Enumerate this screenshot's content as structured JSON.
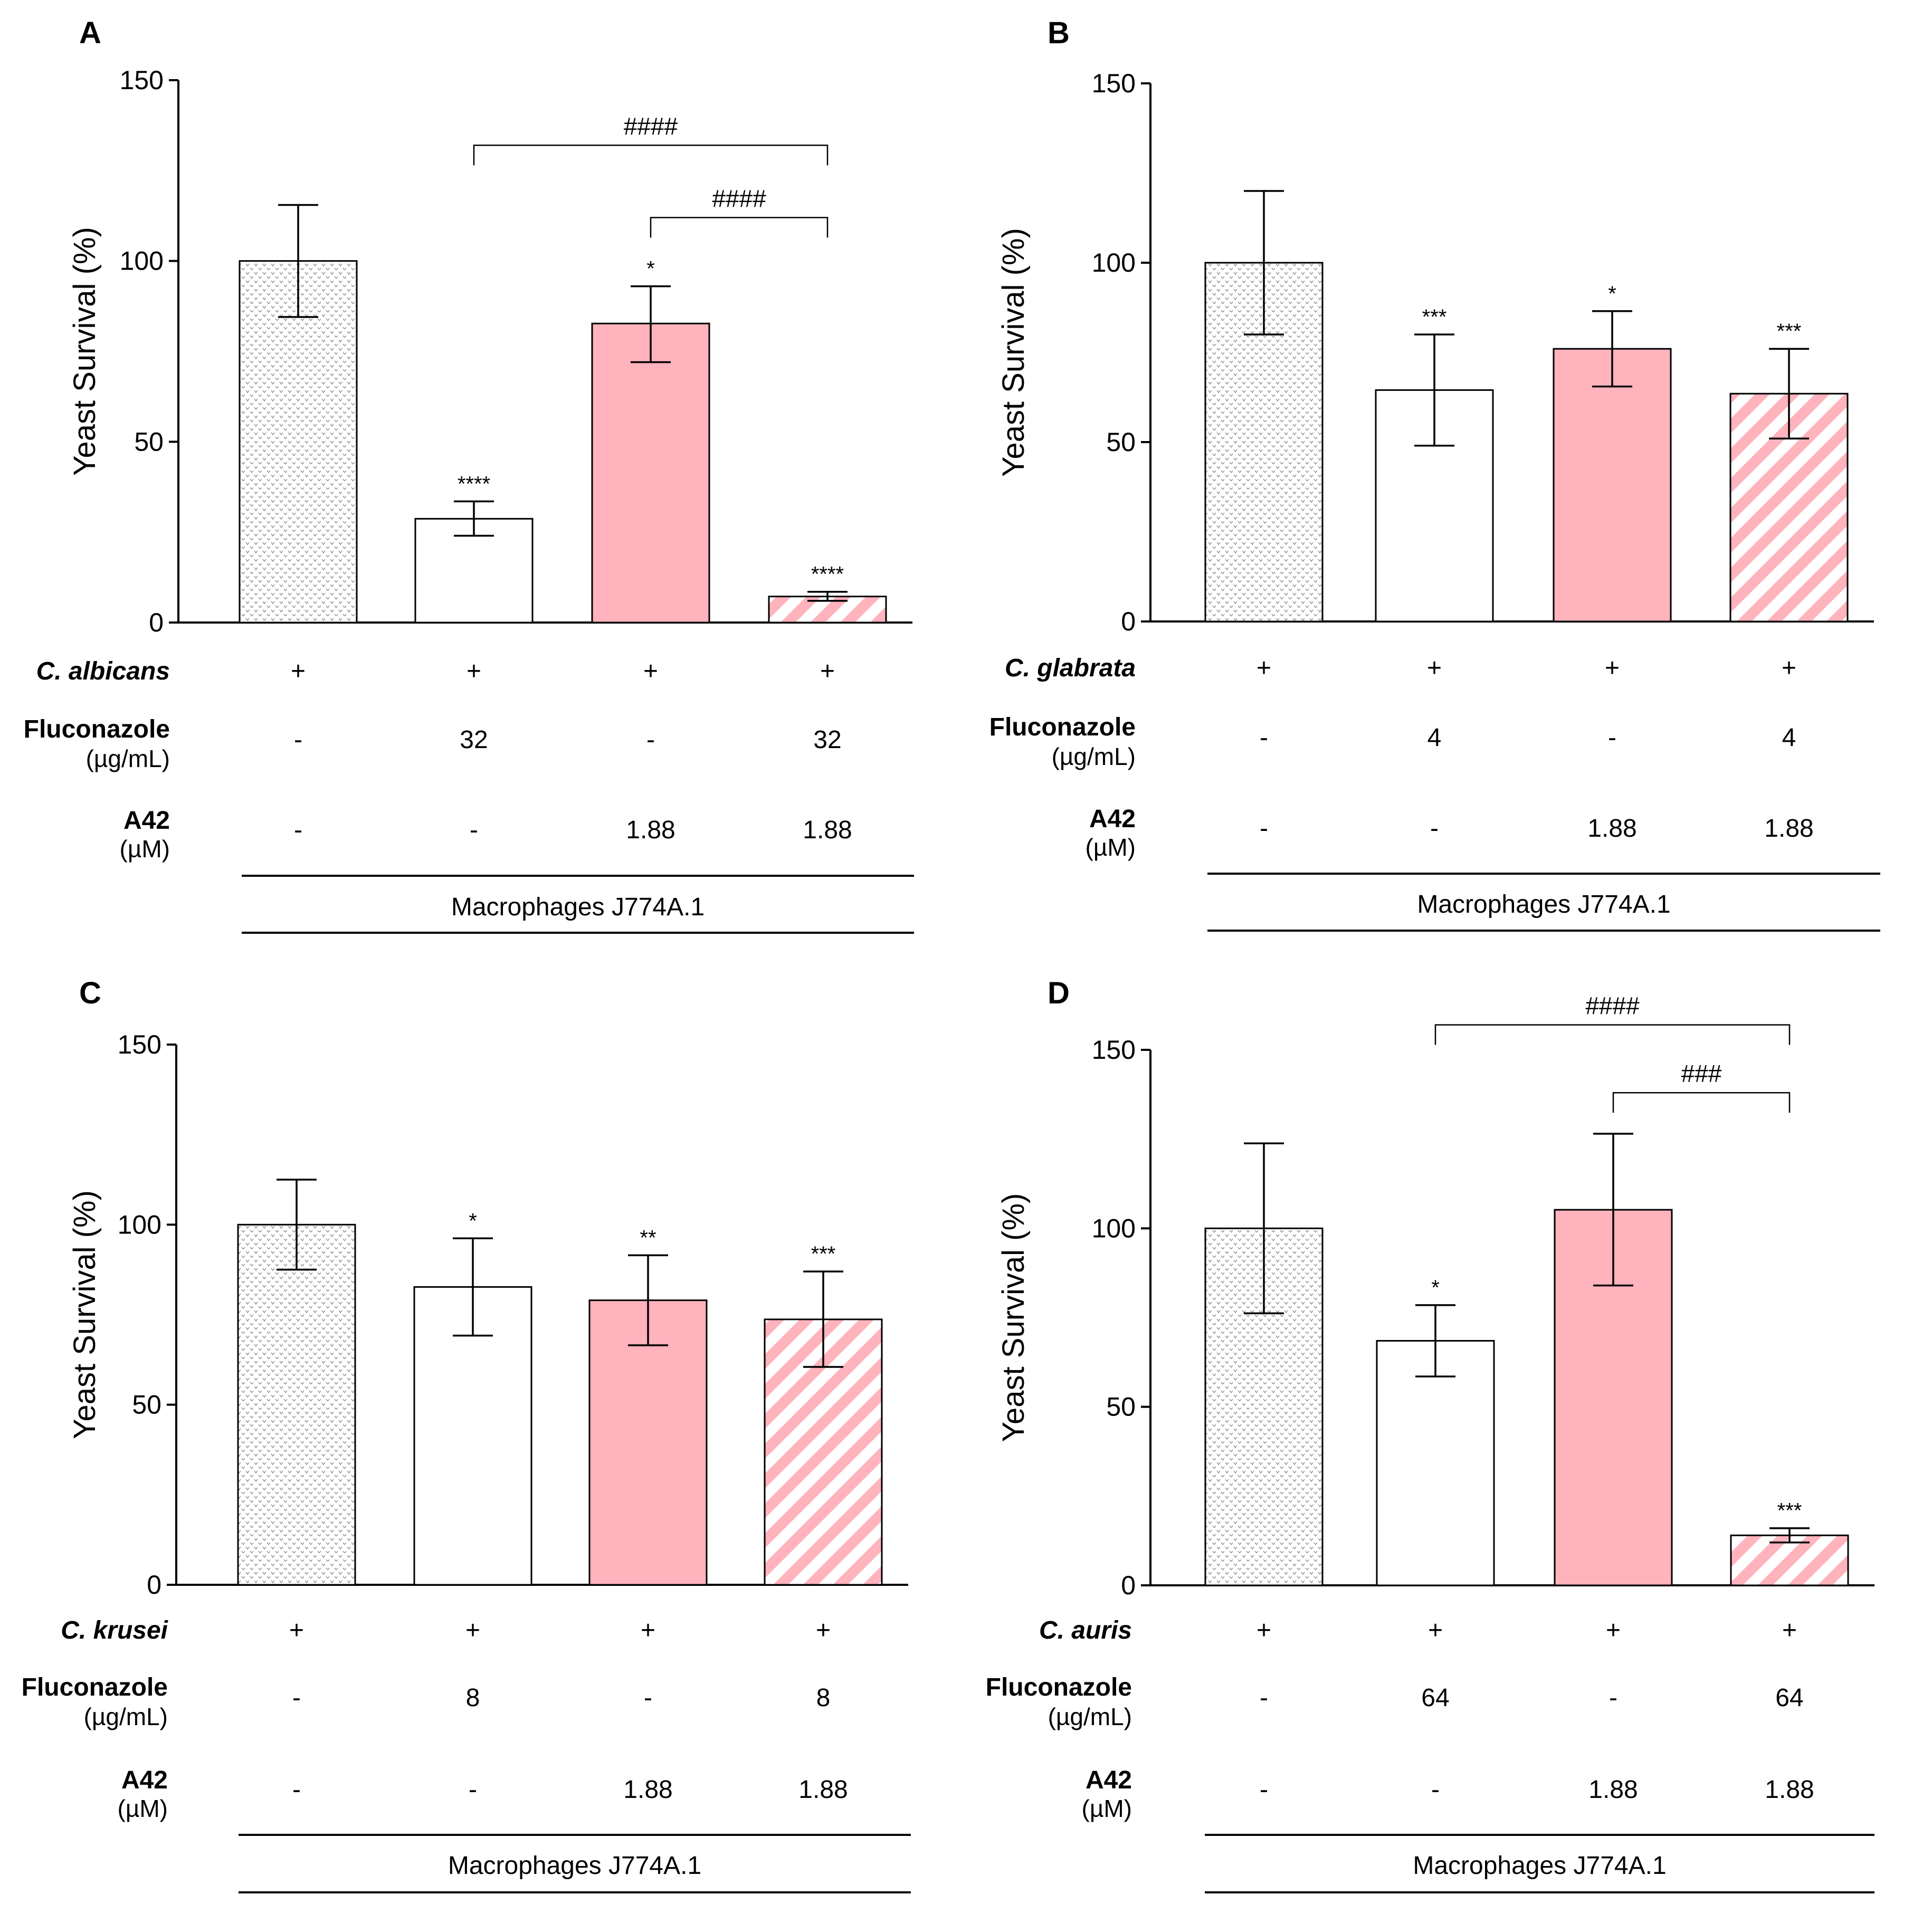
{
  "colors": {
    "pink": "#FFB3BD",
    "control_pattern": "#9a9a9a",
    "axis": "#000000"
  },
  "chart_data": [
    {
      "type": "bar",
      "panel": "A",
      "ylabel": "Yeast Survival (%)",
      "ylim": [
        0,
        150
      ],
      "yticks": [
        "0",
        "50",
        "100",
        "150"
      ],
      "bars": [
        {
          "name": "control",
          "fill": "dots",
          "value": 100,
          "err_low": 84.5,
          "err_high": 115.5,
          "sig": ""
        },
        {
          "name": "fluconazole",
          "fill": "white",
          "value": 28.7,
          "err_low": 24,
          "err_high": 33.5,
          "sig": "****"
        },
        {
          "name": "A42",
          "fill": "pink",
          "value": 82.7,
          "err_low": 72,
          "err_high": 93,
          "sig": "*"
        },
        {
          "name": "fluconazole+A42",
          "fill": "stripes",
          "value": 7.2,
          "err_low": 6,
          "err_high": 8.5,
          "sig": "****"
        }
      ],
      "brackets": [
        {
          "from": 1,
          "to": 3,
          "label": "####",
          "level": 132
        },
        {
          "from": 2,
          "to": 3,
          "label": "####",
          "level": 112
        }
      ],
      "species": "C. albicans",
      "species_row": [
        "+",
        "+",
        "+",
        "+"
      ],
      "fluconazole_label": "Fluconazole",
      "fluconazole_unit": "(µg/mL)",
      "fluconazole_row": [
        "-",
        "32",
        "-",
        "32"
      ],
      "a42_label": "A42",
      "a42_unit": "(µM)",
      "a42_row": [
        "-",
        "-",
        "1.88",
        "1.88"
      ],
      "condition": "Macrophages J774A.1"
    },
    {
      "type": "bar",
      "panel": "B",
      "ylabel": "Yeast Survival (%)",
      "ylim": [
        0,
        150
      ],
      "yticks": [
        "0",
        "50",
        "100",
        "150"
      ],
      "bars": [
        {
          "name": "control",
          "fill": "dots",
          "value": 100,
          "err_low": 80,
          "err_high": 120,
          "sig": ""
        },
        {
          "name": "fluconazole",
          "fill": "white",
          "value": 64.5,
          "err_low": 49,
          "err_high": 80,
          "sig": "***"
        },
        {
          "name": "A42",
          "fill": "pink",
          "value": 76,
          "err_low": 65.5,
          "err_high": 86.5,
          "sig": "*"
        },
        {
          "name": "fluconazole+A42",
          "fill": "stripes",
          "value": 63.5,
          "err_low": 51,
          "err_high": 76,
          "sig": "***"
        }
      ],
      "brackets": [],
      "species": "C. glabrata",
      "species_row": [
        "+",
        "+",
        "+",
        "+"
      ],
      "fluconazole_label": "Fluconazole",
      "fluconazole_unit": "(µg/mL)",
      "fluconazole_row": [
        "-",
        "4",
        "-",
        "4"
      ],
      "a42_label": "A42",
      "a42_unit": "(µM)",
      "a42_row": [
        "-",
        "-",
        "1.88",
        "1.88"
      ],
      "condition": "Macrophages J774A.1"
    },
    {
      "type": "bar",
      "panel": "C",
      "ylabel": "Yeast Survival (%)",
      "ylim": [
        0,
        150
      ],
      "yticks": [
        "0",
        "50",
        "100",
        "150"
      ],
      "bars": [
        {
          "name": "control",
          "fill": "dots",
          "value": 100,
          "err_low": 87.5,
          "err_high": 112.5,
          "sig": ""
        },
        {
          "name": "fluconazole",
          "fill": "white",
          "value": 82.7,
          "err_low": 69.2,
          "err_high": 96.2,
          "sig": "*"
        },
        {
          "name": "A42",
          "fill": "pink",
          "value": 79,
          "err_low": 66.5,
          "err_high": 91.5,
          "sig": "**"
        },
        {
          "name": "fluconazole+A42",
          "fill": "stripes",
          "value": 73.7,
          "err_low": 60.5,
          "err_high": 87,
          "sig": "***"
        }
      ],
      "brackets": [],
      "species": "C. krusei",
      "species_row": [
        "+",
        "+",
        "+",
        "+"
      ],
      "fluconazole_label": "Fluconazole",
      "fluconazole_unit": "(µg/mL)",
      "fluconazole_row": [
        "-",
        "8",
        "-",
        "8"
      ],
      "a42_label": "A42",
      "a42_unit": "(µM)",
      "a42_row": [
        "-",
        "-",
        "1.88",
        "1.88"
      ],
      "condition": "Macrophages J774A.1"
    },
    {
      "type": "bar",
      "panel": "D",
      "ylabel": "Yeast Survival (%)",
      "ylim": [
        0,
        150
      ],
      "yticks": [
        "0",
        "50",
        "100",
        "150"
      ],
      "bars": [
        {
          "name": "control",
          "fill": "dots",
          "value": 100,
          "err_low": 76.2,
          "err_high": 123.8,
          "sig": ""
        },
        {
          "name": "fluconazole",
          "fill": "white",
          "value": 68.5,
          "err_low": 58.5,
          "err_high": 78.5,
          "sig": "*"
        },
        {
          "name": "A42",
          "fill": "pink",
          "value": 105.2,
          "err_low": 84,
          "err_high": 126.5,
          "sig": ""
        },
        {
          "name": "fluconazole+A42",
          "fill": "stripes",
          "value": 14,
          "err_low": 12,
          "err_high": 16,
          "sig": "***"
        }
      ],
      "brackets": [
        {
          "from": 1,
          "to": 3,
          "label": "####",
          "level": 157
        },
        {
          "from": 2,
          "to": 3,
          "label": "###",
          "level": 138
        }
      ],
      "species": "C. auris",
      "species_row": [
        "+",
        "+",
        "+",
        "+"
      ],
      "fluconazole_label": "Fluconazole",
      "fluconazole_unit": "(µg/mL)",
      "fluconazole_row": [
        "-",
        "64",
        "-",
        "64"
      ],
      "a42_label": "A42",
      "a42_unit": "(µM)",
      "a42_row": [
        "-",
        "-",
        "1.88",
        "1.88"
      ],
      "condition": "Macrophages J774A.1"
    }
  ]
}
